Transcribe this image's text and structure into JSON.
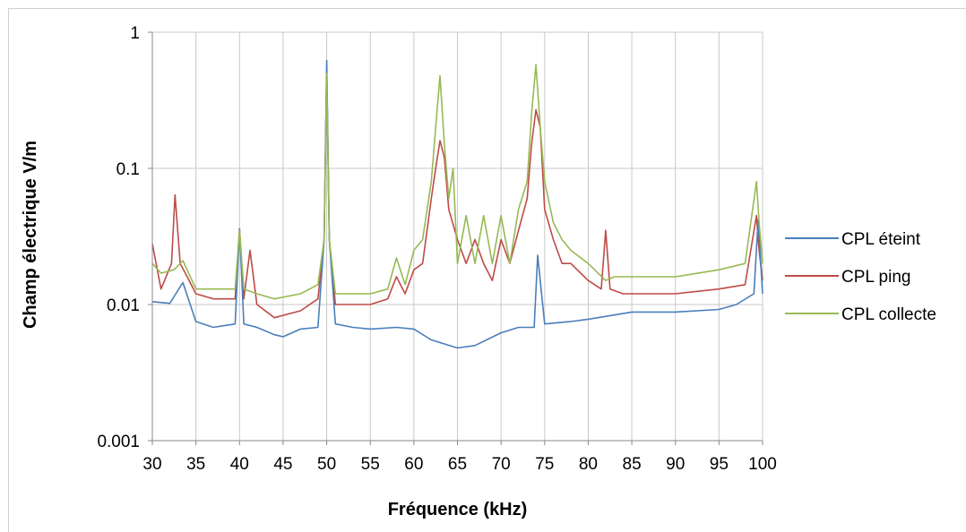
{
  "chart_data": {
    "type": "line",
    "title": "",
    "xlabel": "Fréquence (kHz)",
    "ylabel": "Champ électrique V/m",
    "xlim": [
      30,
      100
    ],
    "ylim": [
      0.001,
      1
    ],
    "yscale": "log",
    "grid": true,
    "legend_position": "right",
    "x_ticks": [
      "30",
      "35",
      "40",
      "45",
      "50",
      "55",
      "60",
      "65",
      "70",
      "75",
      "80",
      "85",
      "90",
      "95",
      "100"
    ],
    "y_ticks": [
      "1",
      "0.1",
      "0.01",
      "0.001"
    ],
    "series": [
      {
        "name": "CPL éteint",
        "color": "#4a7ebb",
        "x": [
          30,
          32,
          33.5,
          35,
          37,
          39.5,
          40,
          40.5,
          42,
          44,
          45,
          47,
          49,
          49.7,
          50,
          50.3,
          51,
          53,
          55,
          58,
          60,
          62,
          65,
          67,
          70,
          72,
          73.8,
          74.2,
          75,
          78,
          80,
          85,
          90,
          95,
          97,
          99,
          99.5,
          100
        ],
        "y": [
          0.0105,
          0.0102,
          0.0145,
          0.0075,
          0.0068,
          0.0072,
          0.036,
          0.0072,
          0.0068,
          0.006,
          0.0058,
          0.0066,
          0.0068,
          0.03,
          0.62,
          0.03,
          0.0072,
          0.0068,
          0.0066,
          0.0068,
          0.0066,
          0.0055,
          0.0048,
          0.005,
          0.0062,
          0.0068,
          0.0068,
          0.023,
          0.0072,
          0.0075,
          0.0078,
          0.0088,
          0.0088,
          0.0092,
          0.01,
          0.012,
          0.042,
          0.012
        ]
      },
      {
        "name": "CPL ping",
        "color": "#be4b48",
        "x": [
          30,
          31,
          32.2,
          32.6,
          33.2,
          34,
          35,
          37,
          39.5,
          40,
          40.5,
          41.2,
          42,
          44,
          47,
          49,
          49.7,
          50,
          50.3,
          51,
          53,
          55,
          57,
          58,
          59,
          60,
          61,
          62,
          62.5,
          63,
          63.5,
          64,
          65,
          66,
          67,
          68,
          69,
          70,
          71,
          72,
          73,
          73.5,
          74,
          74.5,
          75,
          76,
          77,
          78,
          80,
          81.5,
          82,
          82.5,
          84,
          87,
          90,
          95,
          98,
          99.3,
          99.6,
          100
        ],
        "y": [
          0.028,
          0.013,
          0.02,
          0.064,
          0.02,
          0.016,
          0.012,
          0.011,
          0.011,
          0.036,
          0.011,
          0.025,
          0.01,
          0.008,
          0.009,
          0.011,
          0.03,
          0.55,
          0.03,
          0.01,
          0.01,
          0.01,
          0.011,
          0.016,
          0.012,
          0.018,
          0.02,
          0.06,
          0.1,
          0.16,
          0.12,
          0.05,
          0.03,
          0.02,
          0.03,
          0.02,
          0.015,
          0.03,
          0.02,
          0.035,
          0.06,
          0.15,
          0.27,
          0.2,
          0.05,
          0.03,
          0.02,
          0.02,
          0.015,
          0.013,
          0.035,
          0.013,
          0.012,
          0.012,
          0.012,
          0.013,
          0.014,
          0.045,
          0.025,
          0.015
        ]
      },
      {
        "name": "CPL collecte",
        "color": "#98b954",
        "x": [
          30,
          31,
          32.5,
          33.5,
          35,
          37,
          39.5,
          40,
          40.5,
          42,
          44,
          47,
          49,
          49.7,
          50,
          50.3,
          51,
          53,
          55,
          57,
          58,
          59,
          60,
          61,
          62,
          62.5,
          63,
          63.5,
          64,
          64.5,
          65,
          66,
          67,
          68,
          69,
          70,
          71,
          72,
          73,
          73.5,
          74,
          74.5,
          75,
          76,
          77,
          78,
          80,
          82,
          83,
          85,
          88,
          90,
          95,
          98,
          99.3,
          99.6,
          100
        ],
        "y": [
          0.02,
          0.017,
          0.018,
          0.021,
          0.013,
          0.013,
          0.013,
          0.035,
          0.013,
          0.012,
          0.011,
          0.012,
          0.014,
          0.03,
          0.5,
          0.03,
          0.012,
          0.012,
          0.012,
          0.013,
          0.022,
          0.014,
          0.025,
          0.03,
          0.08,
          0.2,
          0.48,
          0.15,
          0.06,
          0.1,
          0.02,
          0.045,
          0.02,
          0.045,
          0.02,
          0.045,
          0.02,
          0.05,
          0.08,
          0.25,
          0.58,
          0.2,
          0.08,
          0.04,
          0.03,
          0.025,
          0.02,
          0.015,
          0.016,
          0.016,
          0.016,
          0.016,
          0.018,
          0.02,
          0.08,
          0.04,
          0.02
        ]
      }
    ]
  }
}
